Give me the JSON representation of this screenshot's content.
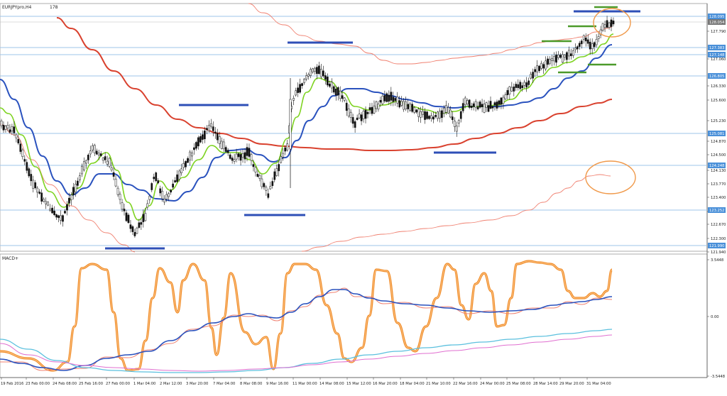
{
  "window": {
    "symbol_label": "EURJPYpro,H4",
    "corner_value": "178",
    "indicator_label": "MACD+"
  },
  "chart_data": [
    {
      "type": "candlestick",
      "series": [
        {
          "name": "",
          "kind": "moving_average",
          "color": "#7ed321"
        },
        {
          "name": "",
          "kind": "moving_average",
          "color": "#2a52be"
        },
        {
          "name": "",
          "kind": "moving_average",
          "color": "#d9412e"
        },
        {
          "name": "",
          "kind": "moving_average",
          "color": "#f08070"
        }
      ],
      "y_ticks": [
        "127.790",
        "127.060",
        "126.330",
        "125.600",
        "125.230",
        "124.870",
        "124.500",
        "124.130",
        "123.770",
        "123.400",
        "123.030",
        "122.670",
        "122.300",
        "121.940"
      ],
      "price_tags": [
        {
          "label": "128.095",
          "level": "resistance"
        },
        {
          "label": "128.054",
          "level": "current",
          "color": "#777777"
        },
        {
          "label": "127.383",
          "level": "resistance"
        },
        {
          "label": "127.148",
          "level": "resistance"
        },
        {
          "label": "126.805",
          "level": "support"
        },
        {
          "label": "125.081",
          "level": "support"
        },
        {
          "label": "124.248",
          "level": "support"
        },
        {
          "label": "123.252",
          "level": "support"
        },
        {
          "label": "121.990",
          "level": "support"
        }
      ],
      "horizontal_lines_color": "#9ec4ea",
      "accent_colors": {
        "markers": "#2e4fb7",
        "green_markers": "#4c9a2a",
        "circles": "#f0994a"
      }
    },
    {
      "type": "line",
      "title": "MACD+",
      "y_ticks": [
        "3.5448",
        "0.00",
        "-3.5448"
      ],
      "x_ticks": [
        "19 Feb 2016",
        "23 Feb 00:00",
        "24 Feb 08:00",
        "25 Feb 16:00",
        "27 Feb 00:00",
        "1 Mar 04:00",
        "2 Mar 12:00",
        "3 Mar 20:00",
        "7 Mar 04:00",
        "8 Mar 08:00",
        "9 Mar 16:00",
        "11 Mar 00:00",
        "14 Mar 08:00",
        "15 Mar 12:00",
        "16 Mar 20:00",
        "18 Mar 04:00",
        "21 Mar 10:00",
        "22 Mar 16:00",
        "24 Mar 00:00",
        "25 Mar 08:00",
        "28 Mar 14:00",
        "29 Mar 20:00",
        "31 Mar 04:00"
      ],
      "series": [
        {
          "name": "",
          "color": "#f08a24"
        },
        {
          "name": "",
          "color": "#2a52be"
        },
        {
          "name": "",
          "color": "#f08070"
        },
        {
          "name": "",
          "color": "#5bc0de"
        },
        {
          "name": "",
          "color": "#e06fd0"
        }
      ]
    }
  ]
}
